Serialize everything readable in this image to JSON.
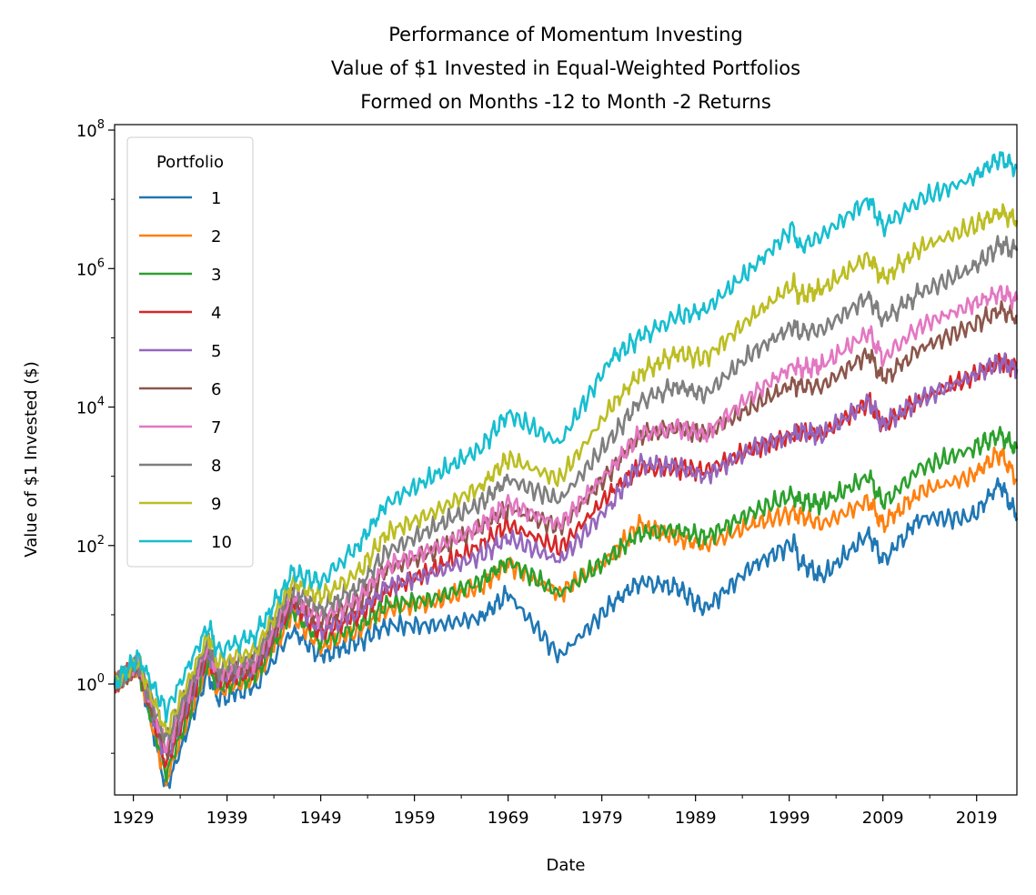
{
  "chart_data": {
    "type": "line",
    "title": [
      "Performance of Momentum Investing",
      "Value of $1 Invested in Equal-Weighted Portfolios",
      "Formed on Months -12 to Month -2 Returns"
    ],
    "xlabel": "Date",
    "ylabel": "Value of $1 Invested ($)",
    "yscale": "log",
    "ylim": [
      0.025,
      120000000
    ],
    "xlim": [
      1927.0,
      2023.3
    ],
    "xticks": [
      1929,
      1939,
      1949,
      1959,
      1969,
      1979,
      1989,
      1999,
      2009,
      2019
    ],
    "yticks": [
      {
        "base": "10",
        "exp": "0",
        "value": 1
      },
      {
        "base": "10",
        "exp": "2",
        "value": 100
      },
      {
        "base": "10",
        "exp": "4",
        "value": 10000
      },
      {
        "base": "10",
        "exp": "6",
        "value": 1000000
      },
      {
        "base": "10",
        "exp": "8",
        "value": 100000000
      }
    ],
    "grid": false,
    "legend": {
      "title": "Portfolio",
      "placement": "top-left"
    },
    "x": [
      1927.0,
      1929.5,
      1932.5,
      1937.0,
      1938.0,
      1942.0,
      1946.0,
      1949.0,
      1953.0,
      1956.0,
      1961.0,
      1966.0,
      1969.0,
      1974.5,
      1980.0,
      1983.0,
      1987.0,
      1990.0,
      1995.0,
      1999.5,
      2000.0,
      2002.5,
      2007.5,
      2009.0,
      2013.0,
      2018.5,
      2021.5,
      2023.3
    ],
    "series": [
      {
        "name": "1",
        "color": "#1f77b4",
        "values": [
          1.0,
          1.8,
          0.03,
          1.5,
          0.6,
          0.9,
          6.0,
          2.5,
          4.0,
          7.0,
          7.0,
          9.0,
          20.0,
          2.5,
          14.0,
          30.0,
          25.0,
          12.0,
          50.0,
          110.0,
          60.0,
          35.0,
          150.0,
          60.0,
          250.0,
          250.0,
          800.0,
          250.0
        ]
      },
      {
        "name": "2",
        "color": "#ff7f0e",
        "values": [
          1.0,
          1.8,
          0.04,
          2.0,
          0.8,
          1.2,
          10.0,
          3.5,
          6.0,
          12.0,
          15.0,
          25.0,
          55.0,
          20.0,
          70.0,
          200.0,
          130.0,
          100.0,
          200.0,
          300.0,
          280.0,
          200.0,
          450.0,
          200.0,
          600.0,
          1000.0,
          2200.0,
          900.0
        ]
      },
      {
        "name": "3",
        "color": "#2ca02c",
        "values": [
          1.0,
          1.8,
          0.05,
          2.2,
          0.9,
          1.3,
          12.0,
          4.0,
          7.0,
          14.0,
          17.0,
          30.0,
          60.0,
          20.0,
          70.0,
          150.0,
          170.0,
          130.0,
          300.0,
          550.0,
          450.0,
          400.0,
          1000.0,
          400.0,
          1300.0,
          2500.0,
          4000.0,
          2500.0
        ]
      },
      {
        "name": "4",
        "color": "#d62728",
        "values": [
          1.0,
          1.9,
          0.07,
          2.8,
          1.1,
          1.6,
          15.0,
          5.5,
          10.0,
          22.0,
          45.0,
          100.0,
          200.0,
          90.0,
          600.0,
          1300.0,
          1300.0,
          1200.0,
          2500.0,
          4000.0,
          4500.0,
          4000.0,
          12000.0,
          5500.0,
          13000.0,
          28000.0,
          45000.0,
          35000.0
        ]
      },
      {
        "name": "5",
        "color": "#9467bd",
        "values": [
          1.0,
          1.9,
          0.08,
          3.0,
          1.2,
          1.7,
          16.0,
          6.0,
          11.0,
          25.0,
          40.0,
          70.0,
          130.0,
          60.0,
          400.0,
          1500.0,
          1400.0,
          1000.0,
          2500.0,
          4000.0,
          4500.0,
          4000.0,
          12000.0,
          5500.0,
          13000.0,
          28000.0,
          45000.0,
          35000.0
        ]
      },
      {
        "name": "6",
        "color": "#8c564b",
        "values": [
          1.0,
          1.9,
          0.1,
          3.3,
          1.3,
          1.9,
          18.0,
          8.0,
          15.0,
          45.0,
          80.0,
          180.0,
          350.0,
          180.0,
          1200.0,
          4000.0,
          5000.0,
          4000.0,
          10000.0,
          22000.0,
          20000.0,
          20000.0,
          60000.0,
          25000.0,
          70000.0,
          150000.0,
          250000.0,
          200000.0
        ]
      },
      {
        "name": "7",
        "color": "#e377c2",
        "values": [
          1.0,
          2.0,
          0.12,
          3.6,
          1.4,
          2.1,
          20.0,
          9.0,
          17.0,
          50.0,
          90.0,
          190.0,
          400.0,
          200.0,
          1300.0,
          4000.0,
          5000.0,
          4000.0,
          15000.0,
          40000.0,
          35000.0,
          40000.0,
          120000.0,
          50000.0,
          150000.0,
          300000.0,
          450000.0,
          350000.0
        ]
      },
      {
        "name": "8",
        "color": "#7f7f7f",
        "values": [
          1.0,
          2.0,
          0.15,
          4.2,
          1.6,
          2.5,
          24.0,
          12.0,
          25.0,
          80.0,
          180.0,
          400.0,
          900.0,
          450.0,
          3500.0,
          12000.0,
          20000.0,
          15000.0,
          60000.0,
          150000.0,
          120000.0,
          130000.0,
          400000.0,
          180000.0,
          450000.0,
          1000000.0,
          2200000.0,
          1800000.0
        ]
      },
      {
        "name": "9",
        "color": "#bcbd22",
        "values": [
          1.0,
          2.1,
          0.2,
          5.0,
          2.0,
          3.0,
          30.0,
          18.0,
          40.0,
          150.0,
          300.0,
          700.0,
          1800.0,
          900.0,
          10000.0,
          30000.0,
          60000.0,
          50000.0,
          200000.0,
          600000.0,
          400000.0,
          500000.0,
          1500000.0,
          700000.0,
          2000000.0,
          4000000.0,
          6500000.0,
          5000000.0
        ]
      },
      {
        "name": "10",
        "color": "#17becf",
        "values": [
          1.0,
          2.5,
          0.4,
          7.0,
          3.0,
          5.0,
          40.0,
          30.0,
          100.0,
          400.0,
          1000.0,
          2500.0,
          8000.0,
          3000.0,
          50000.0,
          100000.0,
          200000.0,
          250000.0,
          1000000.0,
          4000000.0,
          2000000.0,
          3000000.0,
          10000000.0,
          4000000.0,
          10000000.0,
          20000000.0,
          40000000.0,
          28000000.0
        ]
      }
    ]
  }
}
